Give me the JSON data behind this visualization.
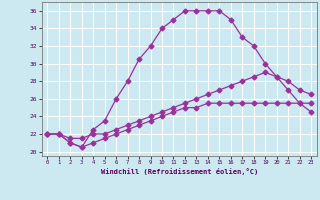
{
  "xlabel": "Windchill (Refroidissement éolien,°C)",
  "background_color": "#cce8f0",
  "grid_color": "#ffffff",
  "line_color": "#993399",
  "xlim": [
    -0.5,
    23.5
  ],
  "ylim": [
    19.5,
    37
  ],
  "yticks": [
    20,
    22,
    24,
    26,
    28,
    30,
    32,
    34,
    36
  ],
  "xticks": [
    0,
    1,
    2,
    3,
    4,
    5,
    6,
    7,
    8,
    9,
    10,
    11,
    12,
    13,
    14,
    15,
    16,
    17,
    18,
    19,
    20,
    21,
    22,
    23
  ],
  "series1_x": [
    0,
    1,
    2,
    3,
    4,
    5,
    6,
    7,
    8,
    9,
    10,
    11,
    12,
    13,
    14,
    15,
    16,
    17,
    18,
    19,
    20,
    21,
    22,
    23
  ],
  "series1_y": [
    22.0,
    22.0,
    21.0,
    20.5,
    22.5,
    23.5,
    26.0,
    28.0,
    30.5,
    32.0,
    34.0,
    35.0,
    36.0,
    36.0,
    36.0,
    36.0,
    35.0,
    33.0,
    32.0,
    30.0,
    28.5,
    27.0,
    25.5,
    24.5
  ],
  "series2_x": [
    0,
    1,
    2,
    3,
    4,
    5,
    6,
    7,
    8,
    9,
    10,
    11,
    12,
    13,
    14,
    15,
    16,
    17,
    18,
    19,
    20,
    21,
    22,
    23
  ],
  "series2_y": [
    22.0,
    22.0,
    21.5,
    21.5,
    22.0,
    22.0,
    22.5,
    23.0,
    23.5,
    24.0,
    24.5,
    25.0,
    25.5,
    26.0,
    26.5,
    27.0,
    27.5,
    28.0,
    28.5,
    29.0,
    28.5,
    28.0,
    27.0,
    26.5
  ],
  "series3_x": [
    0,
    1,
    2,
    3,
    4,
    5,
    6,
    7,
    8,
    9,
    10,
    11,
    12,
    13,
    14,
    15,
    16,
    17,
    18,
    19,
    20,
    21,
    22,
    23
  ],
  "series3_y": [
    22.0,
    22.0,
    21.0,
    20.5,
    21.0,
    21.5,
    22.0,
    22.5,
    23.0,
    23.5,
    24.0,
    24.5,
    25.0,
    25.0,
    25.5,
    25.5,
    25.5,
    25.5,
    25.5,
    25.5,
    25.5,
    25.5,
    25.5,
    25.5
  ]
}
